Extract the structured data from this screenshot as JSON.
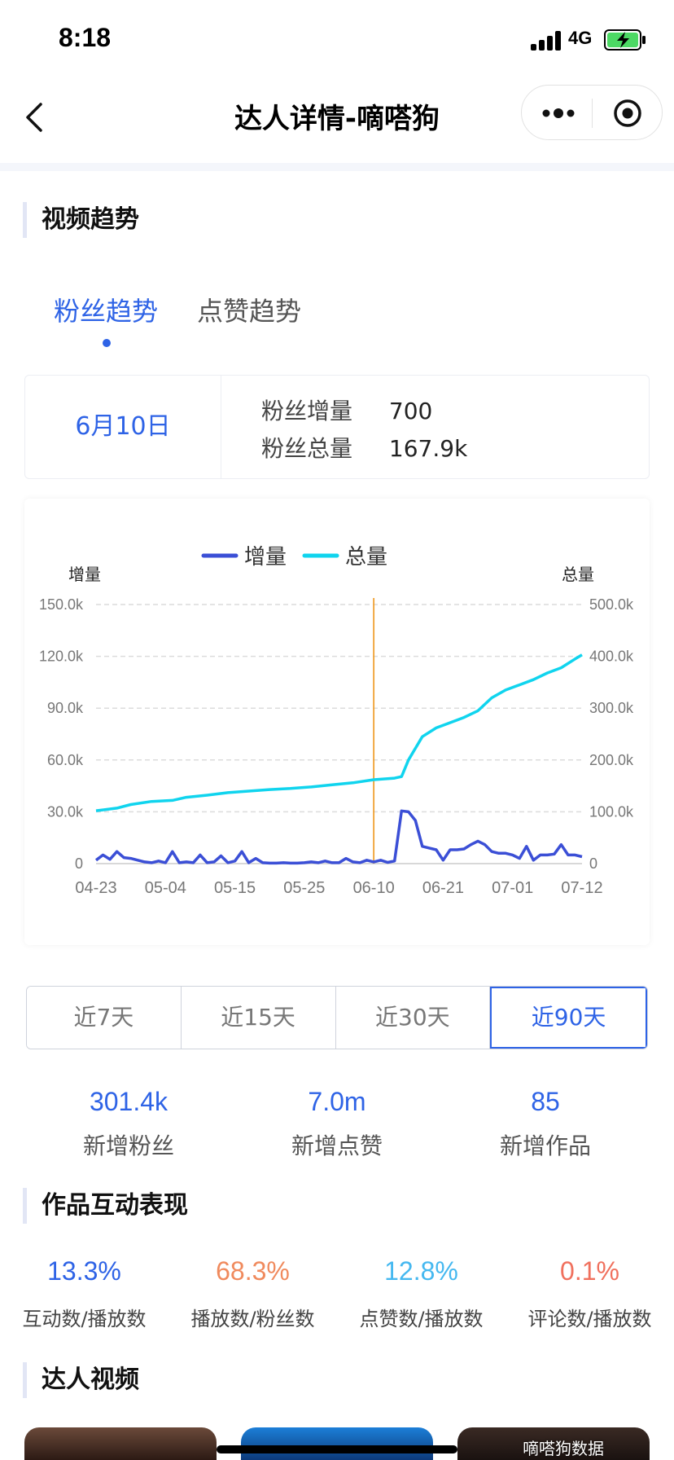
{
  "status_bar": {
    "time": "8:18",
    "network": "4G"
  },
  "nav": {
    "title": "达人详情-嘀嗒狗"
  },
  "sections": {
    "video_trend": "视频趋势",
    "interaction": "作品互动表现",
    "creator_videos": "达人视频"
  },
  "trend_tabs": [
    {
      "label": "粉丝趋势",
      "active": true
    },
    {
      "label": "点赞趋势",
      "active": false
    }
  ],
  "info_card": {
    "date": "6月10日",
    "rows": [
      {
        "label": "粉丝增量",
        "value": "700"
      },
      {
        "label": "粉丝总量",
        "value": "167.9k"
      }
    ]
  },
  "chart_data": {
    "type": "line",
    "legend": [
      "增量",
      "总量"
    ],
    "ylabel_left": "增量",
    "ylabel_right": "总量",
    "categories": [
      "04-23",
      "05-04",
      "05-15",
      "05-25",
      "06-10",
      "06-21",
      "07-01",
      "07-12"
    ],
    "left_ticks": [
      "0",
      "30.0k",
      "60.0k",
      "90.0k",
      "120.0k",
      "150.0k"
    ],
    "right_ticks": [
      "0",
      "100.0k",
      "200.0k",
      "300.0k",
      "400.0k",
      "500.0k"
    ],
    "ylim_left": [
      0,
      150000
    ],
    "ylim_right": [
      0,
      500000
    ],
    "highlight_date": "06-10",
    "colors": {
      "increment": "#3b4fd6",
      "total": "#10d4ee",
      "marker": "#f0a030",
      "grid": "#dcdcdc"
    },
    "series": [
      {
        "name": "增量",
        "points": [
          [
            0,
            2000
          ],
          [
            1,
            5000
          ],
          [
            2,
            2500
          ],
          [
            3,
            7000
          ],
          [
            4,
            3500
          ],
          [
            5,
            3000
          ],
          [
            6,
            2000
          ],
          [
            7,
            1000
          ],
          [
            8,
            500
          ],
          [
            9,
            1500
          ],
          [
            10,
            500
          ],
          [
            11,
            7000
          ],
          [
            12,
            500
          ],
          [
            13,
            1000
          ],
          [
            14,
            500
          ],
          [
            15,
            5000
          ],
          [
            16,
            500
          ],
          [
            17,
            1000
          ],
          [
            18,
            4500
          ],
          [
            19,
            500
          ],
          [
            20,
            1500
          ],
          [
            21,
            7000
          ],
          [
            22,
            500
          ],
          [
            23,
            3000
          ],
          [
            24,
            500
          ],
          [
            25,
            300
          ],
          [
            26,
            300
          ],
          [
            27,
            500
          ],
          [
            28,
            300
          ],
          [
            29,
            300
          ],
          [
            30,
            500
          ],
          [
            31,
            1000
          ],
          [
            32,
            500
          ],
          [
            33,
            1500
          ],
          [
            34,
            500
          ],
          [
            35,
            500
          ],
          [
            36,
            3000
          ],
          [
            37,
            1000
          ],
          [
            38,
            500
          ],
          [
            39,
            2000
          ],
          [
            40,
            1000
          ],
          [
            41,
            2000
          ],
          [
            42,
            700
          ],
          [
            43,
            1500
          ],
          [
            44,
            30500
          ],
          [
            45,
            30000
          ],
          [
            46,
            25000
          ],
          [
            47,
            10000
          ],
          [
            48,
            9000
          ],
          [
            49,
            8000
          ],
          [
            50,
            2000
          ],
          [
            51,
            8000
          ],
          [
            52,
            8000
          ],
          [
            53,
            8500
          ],
          [
            54,
            11000
          ],
          [
            55,
            13000
          ],
          [
            56,
            11000
          ],
          [
            57,
            7000
          ],
          [
            58,
            6000
          ],
          [
            59,
            6000
          ],
          [
            60,
            5000
          ],
          [
            61,
            3000
          ],
          [
            62,
            10000
          ],
          [
            63,
            2000
          ],
          [
            64,
            5000
          ],
          [
            65,
            5000
          ],
          [
            66,
            5500
          ],
          [
            67,
            11000
          ],
          [
            68,
            5000
          ],
          [
            69,
            5000
          ],
          [
            70,
            4000
          ]
        ]
      },
      {
        "name": "总量",
        "points": [
          [
            0,
            102000
          ],
          [
            3,
            107000
          ],
          [
            5,
            114000
          ],
          [
            8,
            120000
          ],
          [
            11,
            122000
          ],
          [
            13,
            128000
          ],
          [
            16,
            132000
          ],
          [
            19,
            137000
          ],
          [
            22,
            140000
          ],
          [
            25,
            143000
          ],
          [
            28,
            145000
          ],
          [
            31,
            148000
          ],
          [
            34,
            152000
          ],
          [
            37,
            156000
          ],
          [
            40,
            162000
          ],
          [
            43,
            165000
          ],
          [
            44,
            167900
          ],
          [
            45,
            200000
          ],
          [
            47,
            245000
          ],
          [
            49,
            262000
          ],
          [
            51,
            272000
          ],
          [
            53,
            282000
          ],
          [
            55,
            295000
          ],
          [
            57,
            320000
          ],
          [
            59,
            335000
          ],
          [
            61,
            345000
          ],
          [
            63,
            355000
          ],
          [
            65,
            368000
          ],
          [
            67,
            378000
          ],
          [
            69,
            395000
          ],
          [
            70,
            403000
          ]
        ]
      }
    ]
  },
  "range_tabs": [
    {
      "label": "近7天",
      "active": false
    },
    {
      "label": "近15天",
      "active": false
    },
    {
      "label": "近30天",
      "active": false
    },
    {
      "label": "近90天",
      "active": true
    }
  ],
  "stats": [
    {
      "value": "301.4k",
      "label": "新增粉丝"
    },
    {
      "value": "7.0m",
      "label": "新增点赞"
    },
    {
      "value": "85",
      "label": "新增作品"
    }
  ],
  "interaction_metrics": [
    {
      "value": "13.3%",
      "label": "互动数/播放数",
      "color": "#2e63e6"
    },
    {
      "value": "68.3%",
      "label": "播放数/粉丝数",
      "color": "#f08a5d"
    },
    {
      "value": "12.8%",
      "label": "点赞数/播放数",
      "color": "#45b8f0"
    },
    {
      "value": "0.1%",
      "label": "评论数/播放数",
      "color": "#f0705d"
    }
  ],
  "watermark": "嘀嗒狗数据"
}
